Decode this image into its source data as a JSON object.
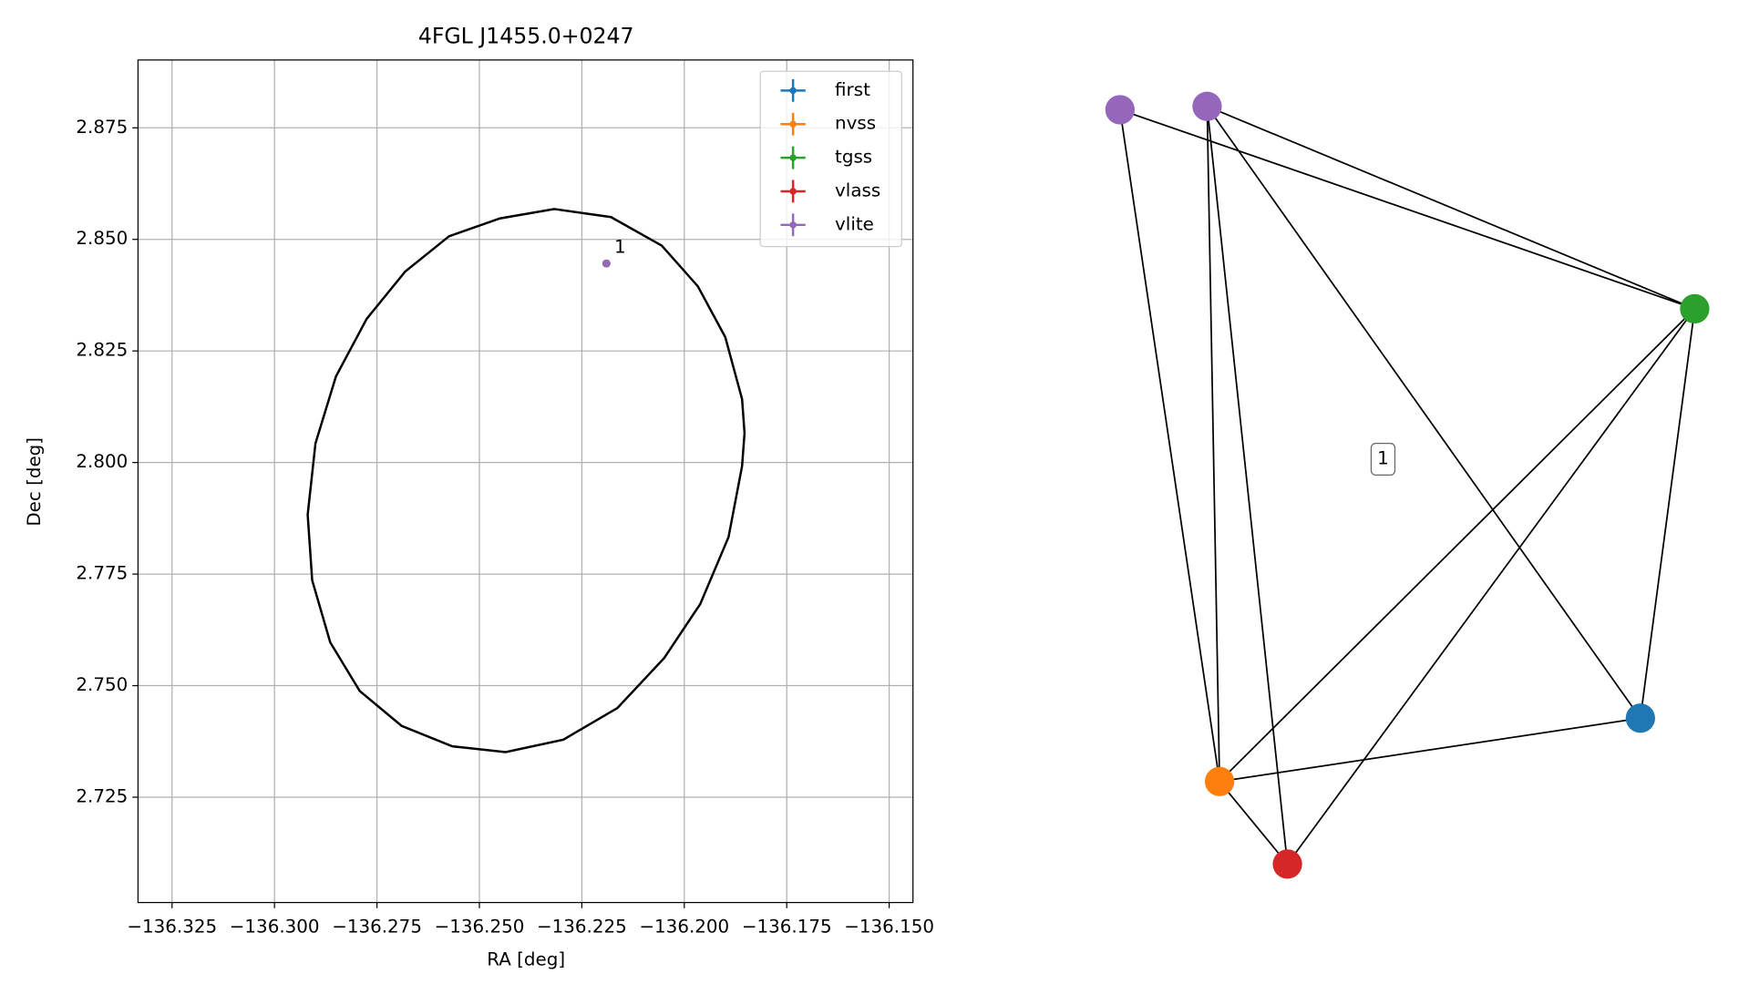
{
  "chart_data": [
    {
      "type": "scatter",
      "title": "4FGL J1455.0+0247",
      "xlabel": "RA [deg]",
      "ylabel": "Dec [deg]",
      "xlim": [
        -136.3333,
        -136.1442
      ],
      "ylim": [
        2.7014,
        2.8902
      ],
      "grid": true,
      "legend": "upper right",
      "xticks": [
        {
          "value": -136.325,
          "label": "−136.325"
        },
        {
          "value": -136.3,
          "label": "−136.300"
        },
        {
          "value": -136.275,
          "label": "−136.275"
        },
        {
          "value": -136.25,
          "label": "−136.250"
        },
        {
          "value": -136.225,
          "label": "−136.225"
        },
        {
          "value": -136.2,
          "label": "−136.200"
        },
        {
          "value": -136.175,
          "label": "−136.175"
        },
        {
          "value": -136.15,
          "label": "−136.150"
        }
      ],
      "yticks": [
        2.725,
        {
          "value": 2.75,
          "label": "2.750"
        },
        2.775,
        {
          "value": 2.8,
          "label": "2.800"
        },
        2.825,
        {
          "value": 2.85,
          "label": "2.850"
        },
        2.875
      ],
      "ellipse": {
        "color": "#000000",
        "x": [
          -136.2317,
          -136.2179,
          -136.2055,
          -136.1967,
          -136.19,
          -136.1859,
          -136.1853,
          -136.1859,
          -136.1892,
          -136.1961,
          -136.2049,
          -136.2163,
          -136.2295,
          -136.2436,
          -136.2566,
          -136.269,
          -136.2792,
          -136.2864,
          -136.2908,
          -136.2919,
          -136.29,
          -136.285,
          -136.2775,
          -136.2681,
          -136.2574,
          -136.245
        ],
        "y": [
          2.8568,
          2.855,
          2.8486,
          2.8395,
          2.8281,
          2.8142,
          2.8066,
          2.7992,
          2.7833,
          2.7683,
          2.7562,
          2.745,
          2.7379,
          2.7351,
          2.7364,
          2.741,
          2.7488,
          2.7597,
          2.7736,
          2.7883,
          2.8043,
          2.8193,
          2.8322,
          2.8428,
          2.8507,
          2.8547
        ]
      },
      "series": [
        {
          "name": "first",
          "color": "#1f77b4",
          "x": [
            -136.219
          ],
          "y": [
            2.8446
          ]
        },
        {
          "name": "nvss",
          "color": "#ff7f0e",
          "x": [
            -136.219
          ],
          "y": [
            2.8446
          ]
        },
        {
          "name": "tgss",
          "color": "#2ca02c",
          "x": [
            -136.219
          ],
          "y": [
            2.8446
          ]
        },
        {
          "name": "vlass",
          "color": "#d62728",
          "x": [
            -136.219
          ],
          "y": [
            2.8446
          ]
        },
        {
          "name": "vlite",
          "color": "#9467bd",
          "x": [
            -136.219
          ],
          "y": [
            2.8446
          ]
        }
      ],
      "annotation": "1"
    },
    {
      "type": "network",
      "label": "1",
      "nodes": [
        {
          "color": "#9467bd"
        },
        {
          "color": "#9467bd"
        },
        {
          "color": "#2ca02c"
        },
        {
          "color": "#1f77b4"
        },
        {
          "color": "#ff7f0e"
        },
        {
          "color": "#d62728"
        }
      ],
      "edges": [
        [
          0,
          4
        ],
        [
          0,
          2
        ],
        [
          1,
          2
        ],
        [
          1,
          4
        ],
        [
          1,
          5
        ],
        [
          1,
          3
        ],
        [
          2,
          4
        ],
        [
          2,
          5
        ],
        [
          2,
          3
        ],
        [
          4,
          3
        ],
        [
          4,
          5
        ]
      ]
    }
  ]
}
